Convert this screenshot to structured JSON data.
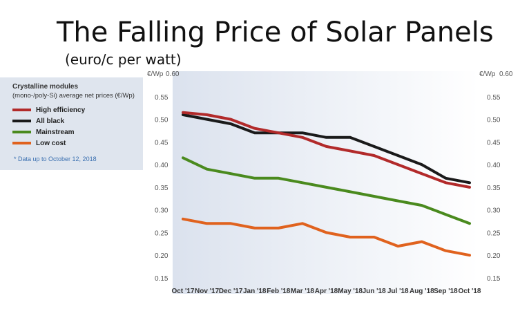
{
  "chart_data": {
    "type": "line",
    "title": "The Falling Price of Solar Panels",
    "subtitle": "(euro/c per watt)",
    "y_unit_left": "€/Wp",
    "y_unit_right": "€/Wp",
    "ylim": [
      0.15,
      0.6
    ],
    "yticks": [
      "0.15",
      "0.20",
      "0.25",
      "0.30",
      "0.35",
      "0.40",
      "0.45",
      "0.50",
      "0.55",
      "0.60"
    ],
    "categories": [
      "Oct '17",
      "Nov '17",
      "Dec '17",
      "Jan '18",
      "Feb '18",
      "Mar '18",
      "Apr '18",
      "May '18",
      "Jun '18",
      "Jul '18",
      "Aug '18",
      "Sep '18",
      "Oct '18"
    ],
    "legend_title": "Crystalline modules",
    "legend_subtitle": "(mono-/poly-Si) average net prices (€/Wp)",
    "note": "* Data up to October 12, 2018",
    "grid": false,
    "series": [
      {
        "name": "High efficiency",
        "color": "#b22a2a",
        "values": [
          0.515,
          0.51,
          0.5,
          0.48,
          0.47,
          0.46,
          0.44,
          0.43,
          0.42,
          0.4,
          0.38,
          0.36,
          0.35
        ]
      },
      {
        "name": "All black",
        "color": "#1a1a1a",
        "values": [
          0.51,
          0.5,
          0.49,
          0.47,
          0.47,
          0.47,
          0.46,
          0.46,
          0.44,
          0.42,
          0.4,
          0.37,
          0.36
        ]
      },
      {
        "name": "Mainstream",
        "color": "#4a8a1e",
        "values": [
          0.415,
          0.39,
          0.38,
          0.37,
          0.37,
          0.36,
          0.35,
          0.34,
          0.33,
          0.32,
          0.31,
          0.29,
          0.27
        ]
      },
      {
        "name": "Low cost",
        "color": "#e0621e",
        "values": [
          0.28,
          0.27,
          0.27,
          0.26,
          0.26,
          0.27,
          0.25,
          0.24,
          0.24,
          0.22,
          0.23,
          0.21,
          0.2
        ]
      }
    ]
  }
}
